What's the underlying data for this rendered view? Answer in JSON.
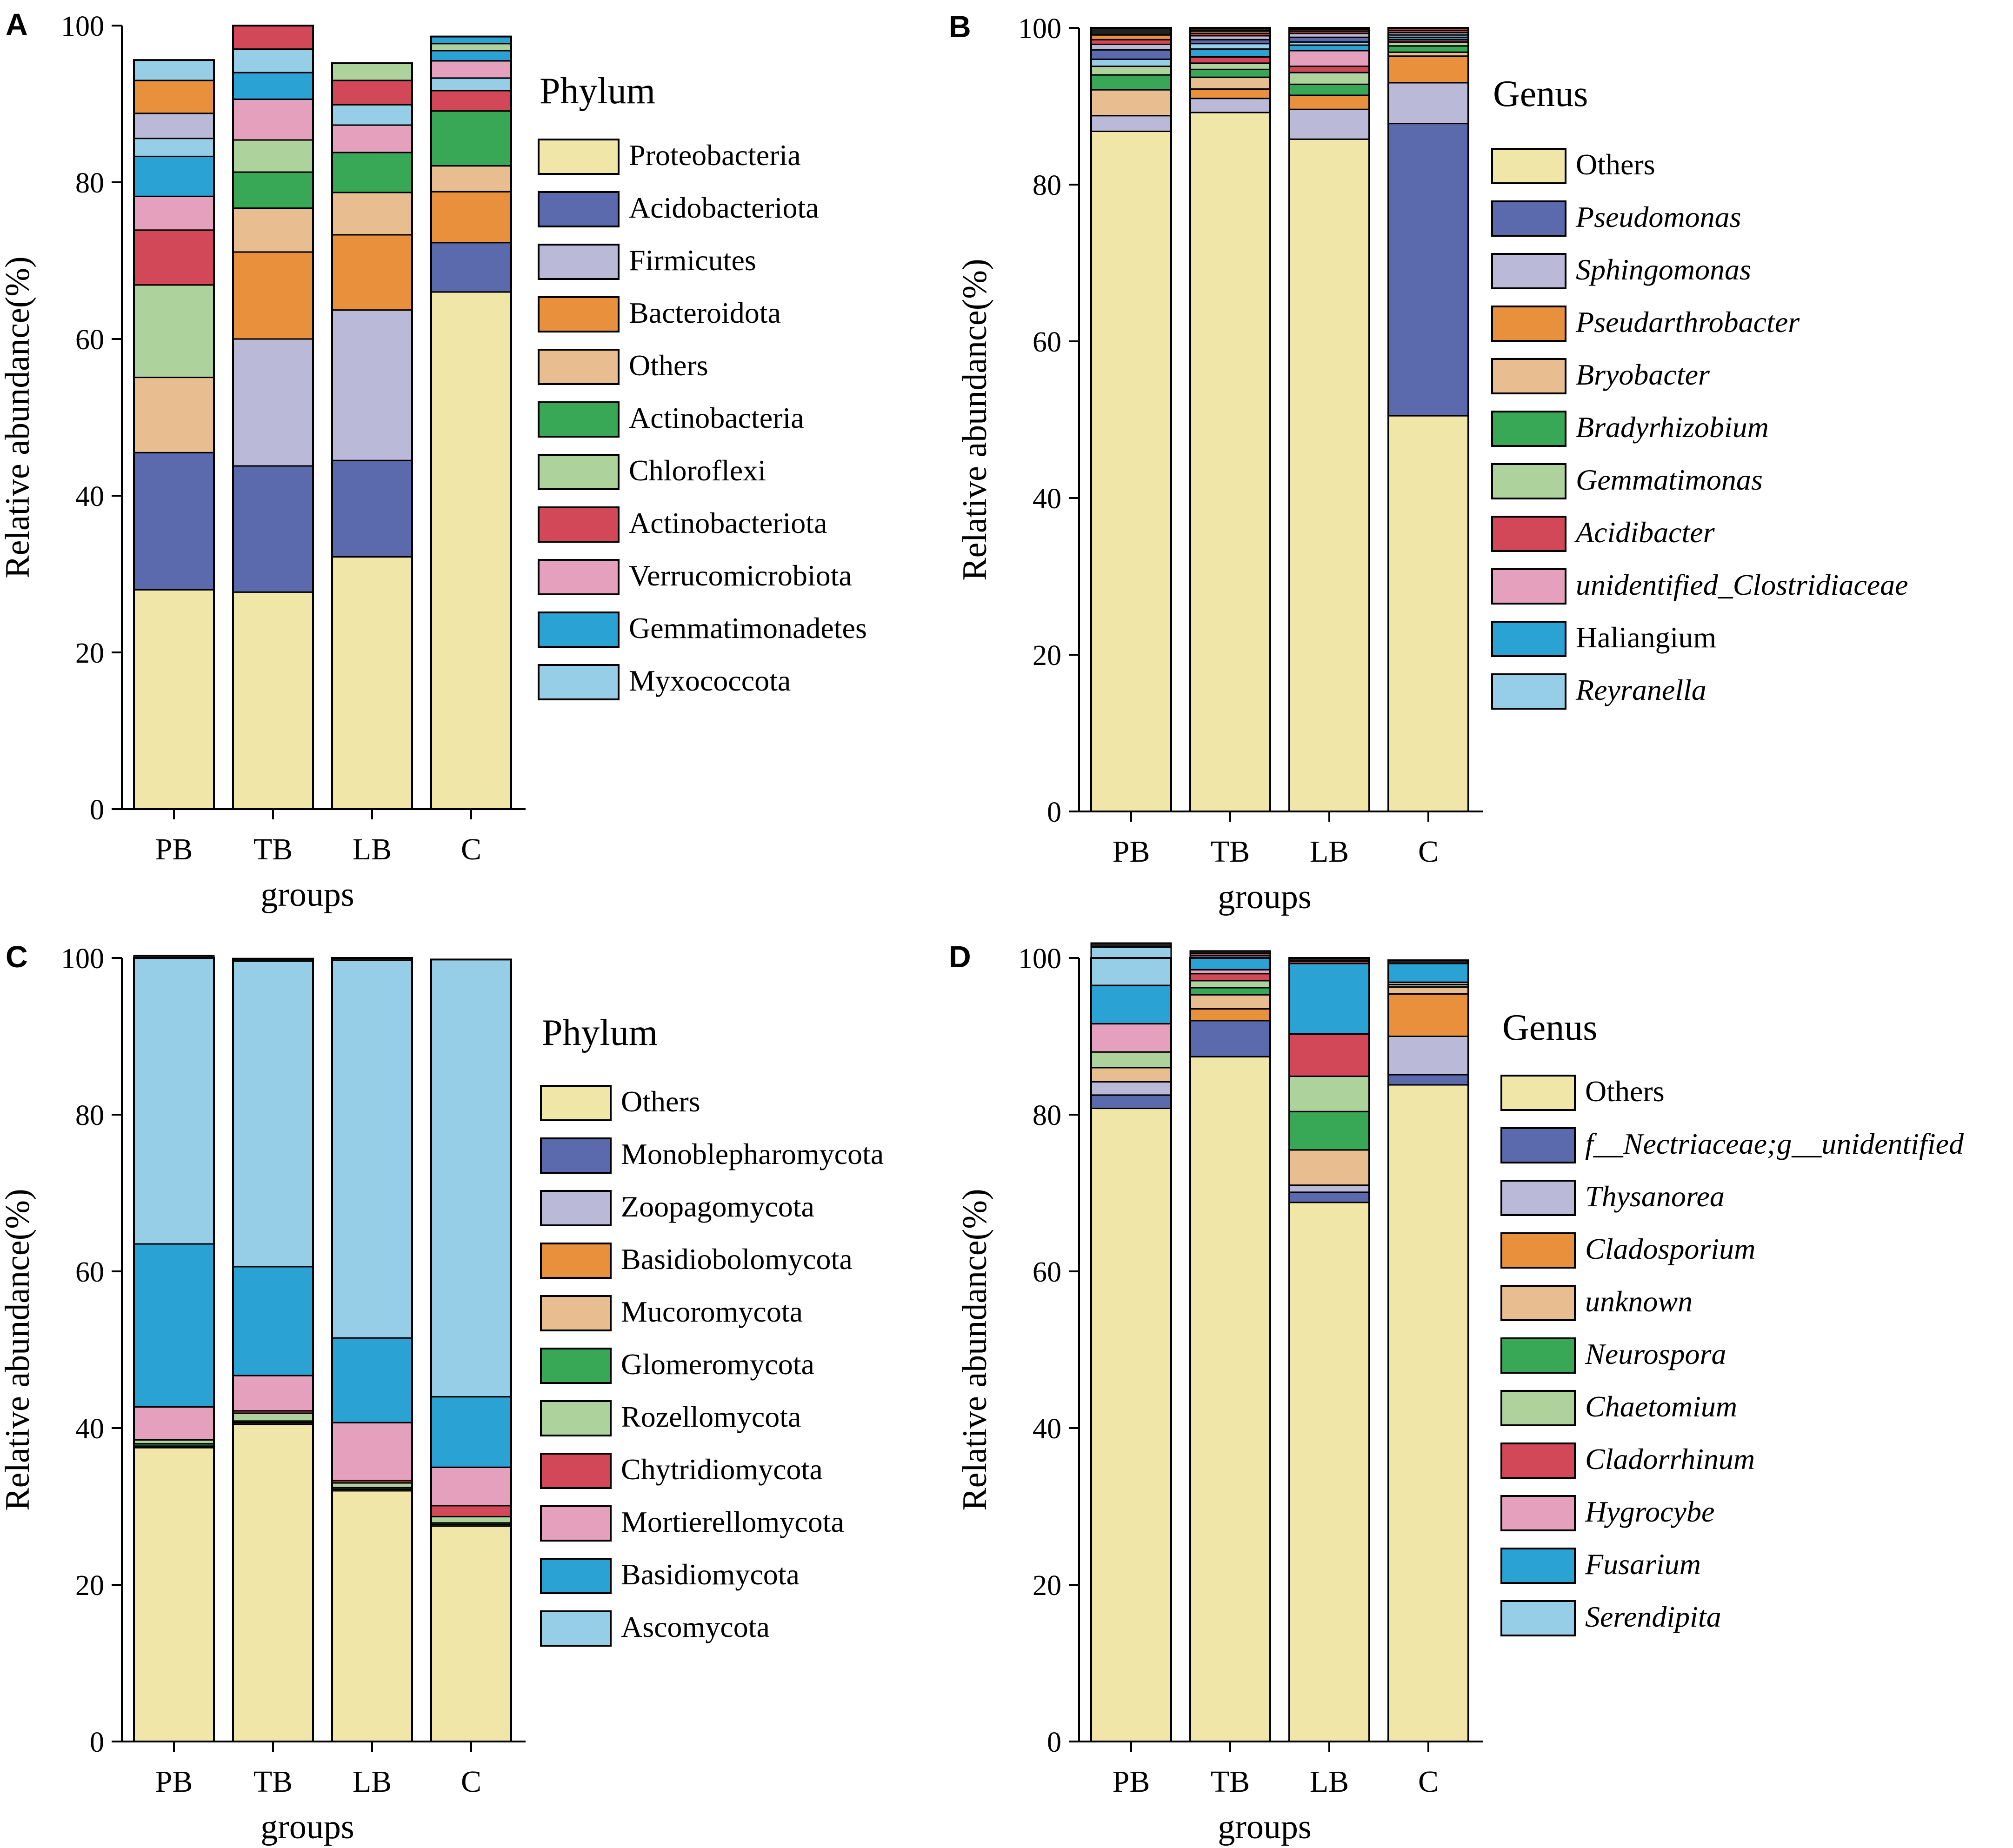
{
  "figure": {
    "colors": {
      "cream": "#f0e6a8",
      "navy": "#5a6aad",
      "lavender": "#babad8",
      "orange": "#e8903c",
      "peach": "#e8be90",
      "green": "#38a856",
      "lightgreen": "#aed29c",
      "red": "#d24858",
      "pink": "#e4a0bc",
      "blue": "#2aa2d4",
      "skyblue": "#96cee8",
      "black": "#222222"
    }
  },
  "chart_data": [
    {
      "panel": "A",
      "type": "bar",
      "stacked": true,
      "xlabel": "groups",
      "ylabel": "Relative abundance(%)",
      "ylim": [
        0,
        100
      ],
      "yticks": [
        "0",
        "20",
        "40",
        "60",
        "80",
        "100"
      ],
      "categories": [
        "PB",
        "TB",
        "LB",
        "C"
      ],
      "legend_title": "Phylum",
      "series": [
        {
          "name": "Proteobacteria",
          "color": "cream",
          "italic": false,
          "values": [
            28,
            27.7,
            32.2,
            66
          ]
        },
        {
          "name": "Acidobacteriota",
          "color": "navy",
          "italic": false,
          "values": [
            17.5,
            16.1,
            12.3,
            6.3
          ]
        },
        {
          "name": "Firmicutes",
          "color": "lavender",
          "italic": false,
          "values": [
            0,
            16.2,
            19.2,
            0
          ]
        },
        {
          "name": "Bacteroidota",
          "color": "orange",
          "italic": false,
          "values": [
            0,
            11.1,
            9.6,
            6.5
          ]
        },
        {
          "name": "Others",
          "color": "peach",
          "italic": false,
          "values": [
            9.6,
            5.6,
            5.4,
            3.3
          ]
        },
        {
          "name": "Actinobacteria",
          "color": "green",
          "italic": false,
          "values": [
            0,
            4.6,
            5.1,
            7
          ]
        },
        {
          "name": "Chloroflexi",
          "color": "lightgreen",
          "italic": false,
          "values": [
            11.8,
            4.1,
            0,
            0
          ]
        },
        {
          "name": "Actinobacteriota",
          "color": "red",
          "italic": false,
          "values": [
            7,
            0,
            0,
            2.6
          ]
        },
        {
          "name": "Verrucomicrobiota",
          "color": "pink",
          "italic": false,
          "values": [
            4.3,
            5.2,
            3.5,
            0
          ]
        },
        {
          "name": "Gemmatimonadetes",
          "color": "blue",
          "italic": false,
          "values": [
            5.1,
            3.4,
            0,
            0
          ]
        },
        {
          "name": "Myxococcota",
          "color": "skyblue",
          "italic": false,
          "values": [
            2.3,
            3,
            2.6,
            1.6
          ]
        },
        {
          "name": "",
          "color": "lavender",
          "italic": false,
          "values": [
            3.2,
            0,
            0,
            0
          ]
        },
        {
          "name": "",
          "color": "orange",
          "italic": false,
          "values": [
            4.2,
            0,
            0,
            0
          ]
        },
        {
          "name": "",
          "color": "pink",
          "italic": false,
          "values": [
            0,
            0,
            0,
            2.2
          ]
        },
        {
          "name": "",
          "color": "red",
          "italic": false,
          "values": [
            0,
            3,
            3.1,
            0
          ]
        },
        {
          "name": "",
          "color": "blue",
          "italic": false,
          "values": [
            0,
            0,
            0,
            1.3
          ]
        },
        {
          "name": "",
          "color": "lightgreen",
          "italic": false,
          "values": [
            0,
            0,
            2.2,
            0.9
          ]
        },
        {
          "name": "",
          "color": "skyblue",
          "italic": false,
          "values": [
            2.6,
            0,
            0,
            0
          ]
        },
        {
          "name": "",
          "color": "blue",
          "italic": false,
          "values": [
            0,
            0,
            0,
            0.9
          ]
        }
      ]
    },
    {
      "panel": "B",
      "type": "bar",
      "stacked": true,
      "xlabel": "groups",
      "ylabel": "Relative abundance(%)",
      "ylim": [
        0,
        100
      ],
      "yticks": [
        "0",
        "20",
        "40",
        "60",
        "80",
        "100"
      ],
      "categories": [
        "PB",
        "TB",
        "LB",
        "C"
      ],
      "legend_title": "Genus",
      "series": [
        {
          "name": "Others",
          "color": "cream",
          "italic": false,
          "values": [
            86.8,
            89.2,
            85.8,
            50.5
          ]
        },
        {
          "name": "Pseudomonas",
          "color": "navy",
          "italic": true,
          "values": [
            0,
            0,
            0,
            37.3
          ]
        },
        {
          "name": "Sphingomonas",
          "color": "lavender",
          "italic": true,
          "values": [
            2,
            1.8,
            3.8,
            5.2
          ]
        },
        {
          "name": "Pseudarthrobacter",
          "color": "orange",
          "italic": true,
          "values": [
            0,
            1.2,
            1.8,
            3.4
          ]
        },
        {
          "name": "Bryobacter",
          "color": "peach",
          "italic": true,
          "values": [
            3.3,
            1.5,
            0,
            0.5
          ]
        },
        {
          "name": "Bradyrhizobium",
          "color": "green",
          "italic": true,
          "values": [
            1.9,
            1,
            1.4,
            0.8
          ]
        },
        {
          "name": "Gemmatimonas",
          "color": "lightgreen",
          "italic": true,
          "values": [
            1.1,
            0.8,
            1.5,
            0.5
          ]
        },
        {
          "name": "Acidibacter",
          "color": "red",
          "italic": true,
          "values": [
            0,
            0.8,
            0.8,
            0.3
          ]
        },
        {
          "name": "unidentified_Clostridiaceae",
          "color": "pink",
          "italic": true,
          "values": [
            0,
            0,
            2,
            0
          ]
        },
        {
          "name": "Haliangium",
          "color": "blue",
          "italic": false,
          "values": [
            0,
            1,
            0.7,
            0.3
          ]
        },
        {
          "name": "Reyranella",
          "color": "skyblue",
          "italic": true,
          "values": [
            0.9,
            0.7,
            0.4,
            0.3
          ]
        },
        {
          "name": "",
          "color": "navy",
          "italic": false,
          "values": [
            1.2,
            0.5,
            0.6,
            0
          ]
        },
        {
          "name": "",
          "color": "lavender",
          "italic": false,
          "values": [
            0.7,
            0.5,
            0.5,
            0.3
          ]
        },
        {
          "name": "",
          "color": "red",
          "italic": false,
          "values": [
            0.6,
            0.3,
            0.3,
            0.3
          ]
        },
        {
          "name": "",
          "color": "orange",
          "italic": false,
          "values": [
            0.6,
            0.3,
            0.2,
            0.3
          ]
        },
        {
          "name": "",
          "color": "black",
          "italic": false,
          "values": [
            0.9,
            0.4,
            0.2,
            0
          ]
        }
      ]
    },
    {
      "panel": "C",
      "type": "bar",
      "stacked": true,
      "xlabel": "groups",
      "ylabel": "Relative abundance(%)",
      "ylim": [
        0,
        100
      ],
      "yticks": [
        "0",
        "20",
        "40",
        "60",
        "80",
        "100"
      ],
      "categories": [
        "PB",
        "TB",
        "LB",
        "C"
      ],
      "legend_title": "Phylum",
      "series": [
        {
          "name": "Others",
          "color": "cream",
          "italic": false,
          "values": [
            37.5,
            40.5,
            32,
            27.5
          ]
        },
        {
          "name": "Monoblepharomycota",
          "color": "navy",
          "italic": false,
          "values": [
            0,
            0,
            0,
            0
          ]
        },
        {
          "name": "Zoopagomycota",
          "color": "lavender",
          "italic": false,
          "values": [
            0,
            0,
            0,
            0
          ]
        },
        {
          "name": "Basidiobolomycota",
          "color": "orange",
          "italic": false,
          "values": [
            0,
            0,
            0,
            0
          ]
        },
        {
          "name": "Mucoromycota",
          "color": "peach",
          "italic": false,
          "values": [
            0.2,
            0.2,
            0.2,
            0.2
          ]
        },
        {
          "name": "Glomeromycota",
          "color": "green",
          "italic": false,
          "values": [
            0.3,
            0.2,
            0.2,
            0.2
          ]
        },
        {
          "name": "Rozellomycota",
          "color": "lightgreen",
          "italic": false,
          "values": [
            0.5,
            1,
            0.6,
            0.8
          ]
        },
        {
          "name": "Chytridiomycota",
          "color": "red",
          "italic": false,
          "values": [
            0,
            0.3,
            0.3,
            1.4
          ]
        },
        {
          "name": "Mortierellomycota",
          "color": "pink",
          "italic": false,
          "values": [
            4.2,
            4.5,
            7.4,
            4.9
          ]
        },
        {
          "name": "Basidiomycota",
          "color": "blue",
          "italic": false,
          "values": [
            20.8,
            13.9,
            10.8,
            9
          ]
        },
        {
          "name": "Ascomycota",
          "color": "skyblue",
          "italic": false,
          "values": [
            36.5,
            39,
            48.2,
            55.8
          ]
        },
        {
          "name": "",
          "color": "black",
          "italic": false,
          "values": [
            0.3,
            0.3,
            0.3,
            0
          ]
        }
      ]
    },
    {
      "panel": "D",
      "type": "bar",
      "stacked": true,
      "xlabel": "groups",
      "ylabel": "Relative abundance(%)",
      "ylim": [
        0,
        100
      ],
      "yticks": [
        "0",
        "20",
        "40",
        "60",
        "80",
        "100"
      ],
      "categories": [
        "PB",
        "TB",
        "LB",
        "C"
      ],
      "legend_title": "Genus",
      "series": [
        {
          "name": "Others",
          "color": "cream",
          "italic": false,
          "values": [
            80.8,
            87.4,
            68.8,
            83.8
          ]
        },
        {
          "name": "f__Nectriaceae;g__unidentified",
          "color": "navy",
          "italic": true,
          "values": [
            1.7,
            4.6,
            1.3,
            1.3
          ]
        },
        {
          "name": "Thysanorea",
          "color": "lavender",
          "italic": true,
          "values": [
            1.7,
            0,
            0.9,
            4.9
          ]
        },
        {
          "name": "Cladosporium",
          "color": "orange",
          "italic": true,
          "values": [
            0,
            1.5,
            0,
            5.4
          ]
        },
        {
          "name": "unknown",
          "color": "peach",
          "italic": true,
          "values": [
            1.8,
            1.8,
            4.5,
            0.9
          ]
        },
        {
          "name": "Neurospora",
          "color": "green",
          "italic": true,
          "values": [
            0,
            0.9,
            4.9,
            0
          ]
        },
        {
          "name": "Chaetomium",
          "color": "lightgreen",
          "italic": true,
          "values": [
            2,
            0.9,
            4.5,
            0.3
          ]
        },
        {
          "name": "Cladorrhinum",
          "color": "red",
          "italic": true,
          "values": [
            0,
            0.9,
            5.4,
            0
          ]
        },
        {
          "name": "Hygrocybe",
          "color": "pink",
          "italic": true,
          "values": [
            3.6,
            0.5,
            0,
            0.3
          ]
        },
        {
          "name": "Fusarium",
          "color": "blue",
          "italic": true,
          "values": [
            4.9,
            1.8,
            9,
            2.4
          ]
        },
        {
          "name": "Serendipita",
          "color": "skyblue",
          "italic": true,
          "values": [
            4.9,
            0,
            0,
            0
          ]
        },
        {
          "name": "",
          "color": "red",
          "italic": false,
          "values": [
            0,
            0.3,
            0.3,
            0
          ]
        },
        {
          "name": "",
          "color": "black",
          "italic": false,
          "values": [
            0.5,
            0.3,
            0.4,
            0.4
          ]
        }
      ]
    }
  ]
}
